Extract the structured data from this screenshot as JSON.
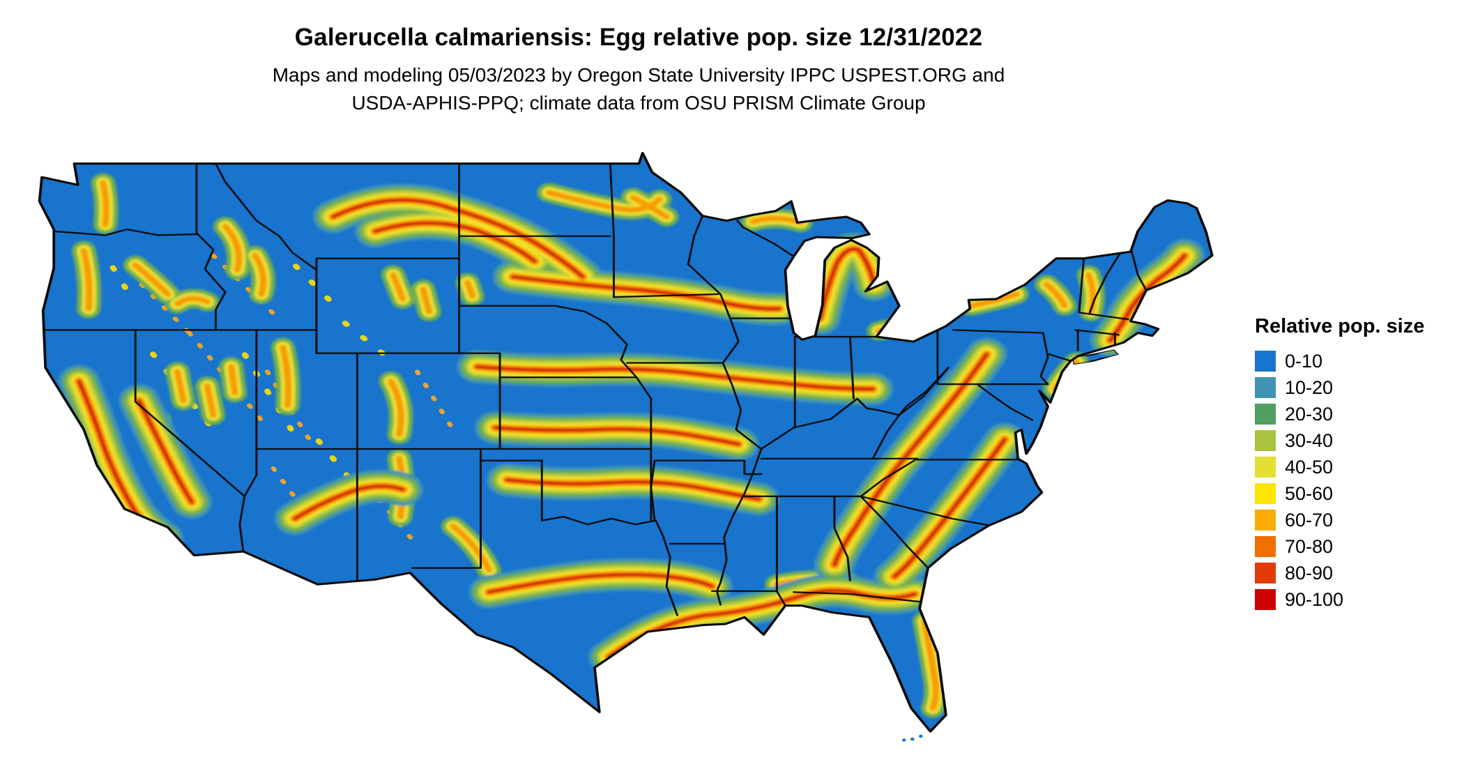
{
  "title": "Galerucella calmariensis: Egg relative pop. size 12/31/2022",
  "subtitle_line1": "Maps and modeling 05/03/2023 by Oregon State University IPPC USPEST.ORG and",
  "subtitle_line2": "USDA-APHIS-PPQ; climate data from OSU PRISM Climate Group",
  "map": {
    "region": "Continental United States",
    "base_color": "#1874cd",
    "border_color": "#0a0a0a"
  },
  "legend": {
    "title": "Relative pop. size",
    "items": [
      {
        "label": "0-10",
        "color": "#1874cd"
      },
      {
        "label": "10-20",
        "color": "#3f93b2"
      },
      {
        "label": "20-30",
        "color": "#4f9e63"
      },
      {
        "label": "30-40",
        "color": "#a9c240"
      },
      {
        "label": "40-50",
        "color": "#e3df33"
      },
      {
        "label": "50-60",
        "color": "#ffe400"
      },
      {
        "label": "60-70",
        "color": "#f8ab00"
      },
      {
        "label": "70-80",
        "color": "#ef7000"
      },
      {
        "label": "80-90",
        "color": "#e13b05"
      },
      {
        "label": "90-100",
        "color": "#cb0000"
      }
    ]
  }
}
